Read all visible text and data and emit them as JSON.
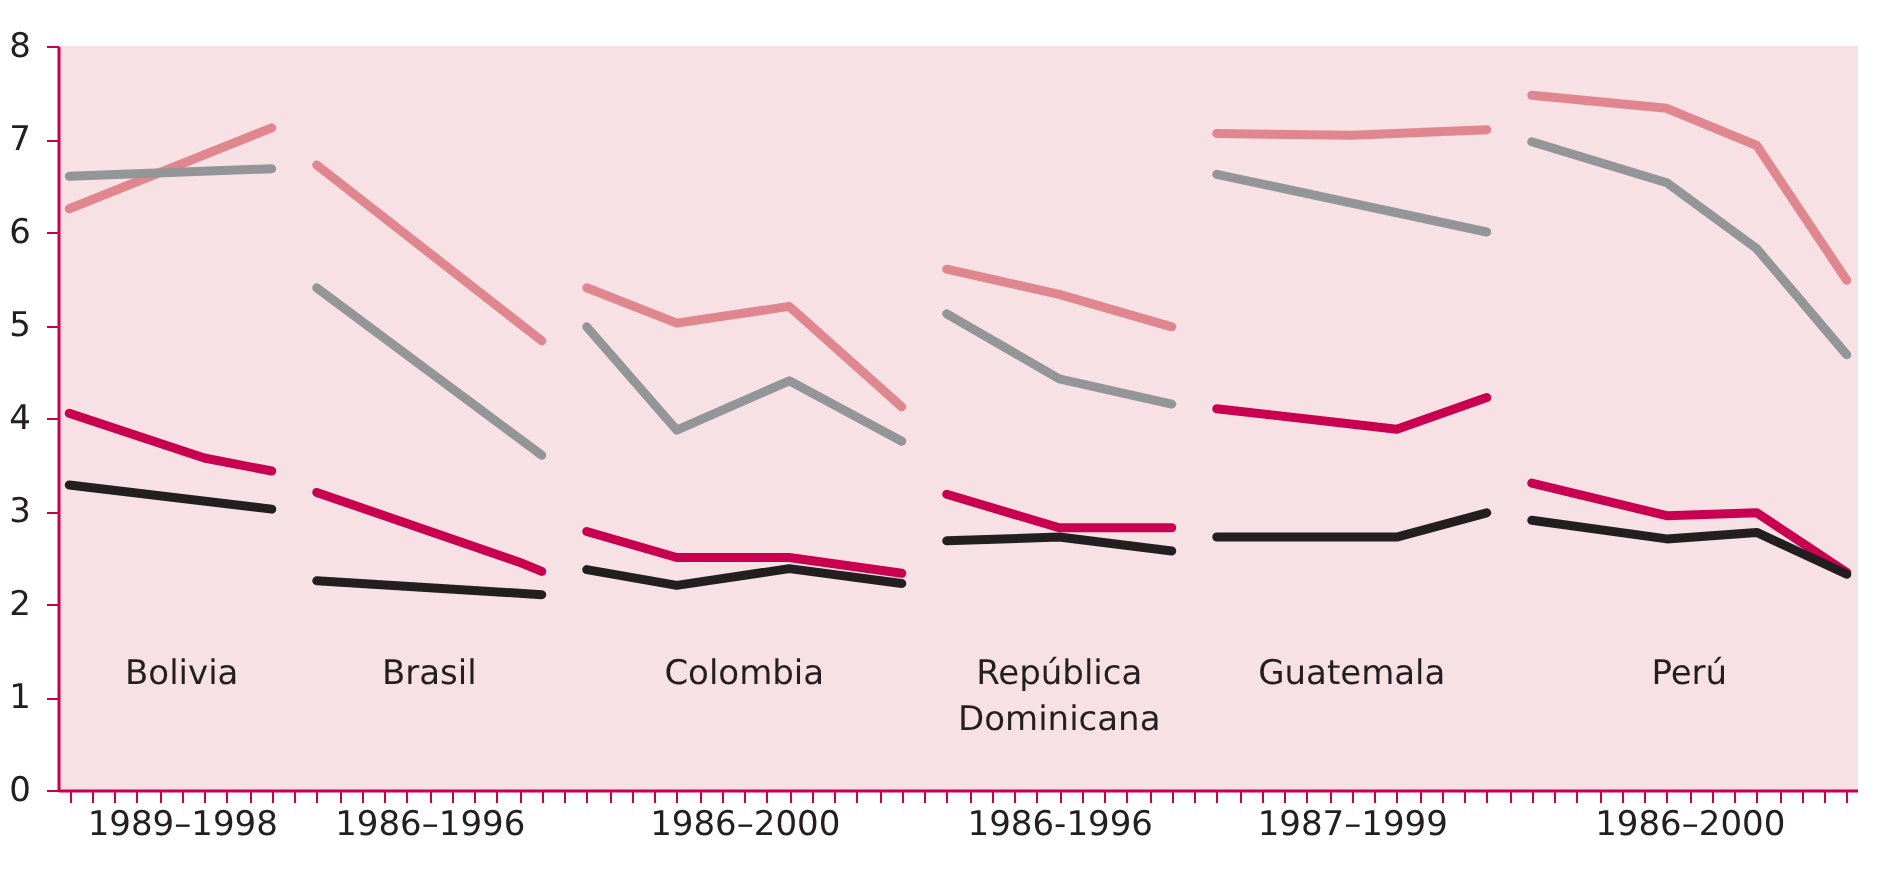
{
  "chart_data": {
    "type": "line",
    "categories": [
      null,
      null,
      null,
      null,
      null,
      "1989–1998",
      null,
      null,
      null,
      null,
      null,
      null,
      null,
      null,
      null,
      null,
      "1986–1996",
      null,
      null,
      null,
      null,
      null,
      null,
      null,
      null,
      null,
      null,
      null,
      null,
      null,
      "1986–2000",
      null,
      null,
      null,
      null,
      null,
      null,
      null,
      null,
      null,
      null,
      null,
      null,
      null,
      "1986-1996",
      null,
      null,
      null,
      null,
      null,
      null,
      null,
      null,
      null,
      null,
      null,
      null,
      "1987–1999",
      null,
      null,
      null,
      null,
      null,
      null,
      null,
      null,
      null,
      null,
      null,
      null,
      null,
      null,
      "1986–2000",
      null,
      null,
      null,
      null,
      null,
      null,
      null
    ],
    "annotations": [
      "Bolivia",
      "Brasil",
      "Colombia",
      "República Dominicana",
      "Guatemala",
      "Perú"
    ],
    "ylim": [
      0,
      8
    ],
    "yticks": [
      0,
      1,
      2,
      3,
      4,
      5,
      6,
      7,
      8
    ],
    "series": [
      {
        "color": "#e0868f",
        "values": [
          6.25,
          null,
          null,
          null,
          null,
          null,
          null,
          null,
          null,
          7.12,
          null,
          null,
          null,
          null,
          null,
          null,
          null,
          null,
          null,
          null,
          null,
          null,
          null,
          null,
          null,
          null,
          null,
          null,
          null,
          null,
          null,
          null,
          null,
          null,
          null,
          null,
          null,
          null,
          null,
          null,
          null,
          null,
          null,
          null,
          null,
          null,
          null,
          null,
          null,
          null,
          null,
          null,
          null,
          null,
          null,
          null,
          null,
          null,
          null,
          null,
          null,
          null,
          null,
          null,
          null,
          null,
          null,
          null,
          null,
          null,
          null,
          null,
          null,
          null,
          null,
          null,
          null,
          null,
          null,
          null
        ]
      },
      {
        "color": "#939598",
        "values": [
          6.6,
          null,
          null,
          null,
          null,
          null,
          null,
          null,
          null,
          6.68,
          null,
          null,
          null,
          null,
          null,
          null,
          null,
          null,
          null,
          null,
          null,
          null,
          null,
          null,
          null,
          null,
          null,
          null,
          null,
          null,
          null,
          null,
          null,
          null,
          null,
          null,
          null,
          null,
          null,
          null,
          null,
          null,
          null,
          null,
          null,
          null,
          null,
          null,
          null,
          null,
          null,
          null,
          null,
          null,
          null,
          null,
          null,
          null,
          null,
          null,
          null,
          null,
          null,
          null,
          null,
          null,
          null,
          null,
          null,
          null,
          null,
          null,
          null,
          null,
          null,
          null,
          null,
          null,
          null,
          null
        ]
      },
      {
        "color": "#c8004f",
        "values": [
          4.05,
          null,
          null,
          null,
          null,
          null,
          3.57,
          null,
          null,
          3.43,
          null,
          null,
          null,
          null,
          null,
          null,
          null,
          null,
          null,
          null,
          null,
          null,
          null,
          null,
          null,
          null,
          null,
          null,
          null,
          null,
          null,
          null,
          null,
          null,
          null,
          null,
          null,
          null,
          null,
          null,
          null,
          null,
          null,
          null,
          null,
          null,
          null,
          null,
          null,
          null,
          null,
          null,
          null,
          null,
          null,
          null,
          null,
          null,
          null,
          null,
          null,
          null,
          null,
          null,
          null,
          null,
          null,
          null,
          null,
          null,
          null,
          null,
          null,
          null,
          null,
          null,
          null,
          null,
          null,
          null
        ]
      },
      {
        "color": "#231f20",
        "values": [
          3.28,
          null,
          null,
          null,
          null,
          null,
          null,
          null,
          null,
          3.02,
          null,
          null,
          null,
          null,
          null,
          null,
          null,
          null,
          null,
          null,
          null,
          null,
          null,
          null,
          null,
          null,
          null,
          null,
          null,
          null,
          null,
          null,
          null,
          null,
          null,
          null,
          null,
          null,
          null,
          null,
          null,
          null,
          null,
          null,
          null,
          null,
          null,
          null,
          null,
          null,
          null,
          null,
          null,
          null,
          null,
          null,
          null,
          null,
          null,
          null,
          null,
          null,
          null,
          null,
          null,
          null,
          null,
          null,
          null,
          null,
          null,
          null,
          null,
          null,
          null,
          null,
          null,
          null,
          null,
          null
        ]
      },
      {
        "color": "#e0868f",
        "values": [
          null,
          null,
          null,
          null,
          null,
          null,
          null,
          null,
          null,
          null,
          null,
          6.72,
          null,
          null,
          null,
          null,
          null,
          null,
          null,
          null,
          null,
          4.83,
          null,
          null,
          null,
          null,
          null,
          null,
          null,
          null,
          null,
          null,
          null,
          null,
          null,
          null,
          null,
          null,
          null,
          null,
          null,
          null,
          null,
          null,
          null,
          null,
          null,
          null,
          null,
          null,
          null,
          null,
          null,
          null,
          null,
          null,
          null,
          null,
          null,
          null,
          null,
          null,
          null,
          null,
          null,
          null,
          null,
          null,
          null,
          null,
          null,
          null,
          null,
          null,
          null,
          null,
          null,
          null,
          null,
          null
        ]
      },
      {
        "color": "#939598",
        "values": [
          null,
          null,
          null,
          null,
          null,
          null,
          null,
          null,
          null,
          null,
          null,
          5.4,
          null,
          null,
          null,
          null,
          null,
          null,
          null,
          null,
          null,
          3.6,
          null,
          null,
          null,
          null,
          null,
          null,
          null,
          null,
          null,
          null,
          null,
          null,
          null,
          null,
          null,
          null,
          null,
          null,
          null,
          null,
          null,
          null,
          null,
          null,
          null,
          null,
          null,
          null,
          null,
          null,
          null,
          null,
          null,
          null,
          null,
          null,
          null,
          null,
          null,
          null,
          null,
          null,
          null,
          null,
          null,
          null,
          null,
          null,
          null,
          null,
          null,
          null,
          null,
          null,
          null,
          null,
          null,
          null
        ]
      },
      {
        "color": "#c8004f",
        "values": [
          null,
          null,
          null,
          null,
          null,
          null,
          null,
          null,
          null,
          null,
          null,
          3.2,
          null,
          null,
          null,
          null,
          null,
          null,
          null,
          null,
          2.45,
          2.35,
          null,
          null,
          null,
          null,
          null,
          null,
          null,
          null,
          null,
          null,
          null,
          null,
          null,
          null,
          null,
          null,
          null,
          null,
          null,
          null,
          null,
          null,
          null,
          null,
          null,
          null,
          null,
          null,
          null,
          null,
          null,
          null,
          null,
          null,
          null,
          null,
          null,
          null,
          null,
          null,
          null,
          null,
          null,
          null,
          null,
          null,
          null,
          null,
          null,
          null,
          null,
          null,
          null,
          null,
          null,
          null,
          null,
          null
        ]
      },
      {
        "color": "#231f20",
        "values": [
          null,
          null,
          null,
          null,
          null,
          null,
          null,
          null,
          null,
          null,
          null,
          2.25,
          null,
          null,
          null,
          null,
          null,
          null,
          null,
          null,
          null,
          2.1,
          null,
          null,
          null,
          null,
          null,
          null,
          null,
          null,
          null,
          null,
          null,
          null,
          null,
          null,
          null,
          null,
          null,
          null,
          null,
          null,
          null,
          null,
          null,
          null,
          null,
          null,
          null,
          null,
          null,
          null,
          null,
          null,
          null,
          null,
          null,
          null,
          null,
          null,
          null,
          null,
          null,
          null,
          null,
          null,
          null,
          null,
          null,
          null,
          null,
          null,
          null,
          null,
          null,
          null,
          null,
          null,
          null,
          null
        ]
      },
      {
        "color": "#e0868f",
        "values": [
          null,
          null,
          null,
          null,
          null,
          null,
          null,
          null,
          null,
          null,
          null,
          null,
          null,
          null,
          null,
          null,
          null,
          null,
          null,
          null,
          null,
          null,
          null,
          5.4,
          null,
          null,
          null,
          5.02,
          null,
          null,
          null,
          null,
          5.2,
          null,
          null,
          null,
          null,
          4.12,
          null,
          null,
          null,
          null,
          null,
          null,
          null,
          null,
          null,
          null,
          null,
          null,
          null,
          null,
          null,
          null,
          null,
          null,
          null,
          null,
          null,
          null,
          null,
          null,
          null,
          null,
          null,
          null,
          null,
          null,
          null,
          null,
          null,
          null,
          null,
          null,
          null,
          null,
          null,
          null,
          null,
          null
        ]
      },
      {
        "color": "#939598",
        "values": [
          null,
          null,
          null,
          null,
          null,
          null,
          null,
          null,
          null,
          null,
          null,
          null,
          null,
          null,
          null,
          null,
          null,
          null,
          null,
          null,
          null,
          null,
          null,
          4.98,
          null,
          null,
          null,
          3.87,
          null,
          null,
          null,
          null,
          4.4,
          null,
          null,
          null,
          null,
          3.75,
          null,
          null,
          null,
          null,
          null,
          null,
          null,
          null,
          null,
          null,
          null,
          null,
          null,
          null,
          null,
          null,
          null,
          null,
          null,
          null,
          null,
          null,
          null,
          null,
          null,
          null,
          null,
          null,
          null,
          null,
          null,
          null,
          null,
          null,
          null,
          null,
          null,
          null,
          null,
          null,
          null,
          null
        ]
      },
      {
        "color": "#c8004f",
        "values": [
          null,
          null,
          null,
          null,
          null,
          null,
          null,
          null,
          null,
          null,
          null,
          null,
          null,
          null,
          null,
          null,
          null,
          null,
          null,
          null,
          null,
          null,
          null,
          2.78,
          null,
          null,
          null,
          2.5,
          null,
          null,
          null,
          null,
          2.5,
          null,
          null,
          null,
          null,
          2.33,
          null,
          null,
          null,
          null,
          null,
          null,
          null,
          null,
          null,
          null,
          null,
          null,
          null,
          null,
          null,
          null,
          null,
          null,
          null,
          null,
          null,
          null,
          null,
          null,
          null,
          null,
          null,
          null,
          null,
          null,
          null,
          null,
          null,
          null,
          null,
          null,
          null,
          null,
          null,
          null,
          null,
          null
        ]
      },
      {
        "color": "#231f20",
        "values": [
          null,
          null,
          null,
          null,
          null,
          null,
          null,
          null,
          null,
          null,
          null,
          null,
          null,
          null,
          null,
          null,
          null,
          null,
          null,
          null,
          null,
          null,
          null,
          2.37,
          null,
          null,
          null,
          2.2,
          null,
          null,
          null,
          null,
          2.38,
          null,
          null,
          null,
          null,
          2.22,
          null,
          null,
          null,
          null,
          null,
          null,
          null,
          null,
          null,
          null,
          null,
          null,
          null,
          null,
          null,
          null,
          null,
          null,
          null,
          null,
          null,
          null,
          null,
          null,
          null,
          null,
          null,
          null,
          null,
          null,
          null,
          null,
          null,
          null,
          null,
          null,
          null,
          null,
          null,
          null,
          null,
          null
        ]
      },
      {
        "color": "#e0868f",
        "values": [
          null,
          null,
          null,
          null,
          null,
          null,
          null,
          null,
          null,
          null,
          null,
          null,
          null,
          null,
          null,
          null,
          null,
          null,
          null,
          null,
          null,
          null,
          null,
          null,
          null,
          null,
          null,
          null,
          null,
          null,
          null,
          null,
          null,
          null,
          null,
          null,
          null,
          null,
          null,
          5.6,
          null,
          null,
          null,
          null,
          5.33,
          null,
          null,
          null,
          null,
          4.98,
          null,
          null,
          null,
          null,
          null,
          null,
          null,
          null,
          null,
          null,
          null,
          null,
          null,
          null,
          null,
          null,
          null,
          null,
          null,
          null,
          null,
          null,
          null,
          null,
          null,
          null,
          null,
          null,
          null,
          null
        ]
      },
      {
        "color": "#939598",
        "values": [
          null,
          null,
          null,
          null,
          null,
          null,
          null,
          null,
          null,
          null,
          null,
          null,
          null,
          null,
          null,
          null,
          null,
          null,
          null,
          null,
          null,
          null,
          null,
          null,
          null,
          null,
          null,
          null,
          null,
          null,
          null,
          null,
          null,
          null,
          null,
          null,
          null,
          null,
          null,
          5.12,
          null,
          null,
          null,
          null,
          4.42,
          null,
          null,
          null,
          null,
          4.15,
          null,
          null,
          null,
          null,
          null,
          null,
          null,
          null,
          null,
          null,
          null,
          null,
          null,
          null,
          null,
          null,
          null,
          null,
          null,
          null,
          null,
          null,
          null,
          null,
          null,
          null,
          null,
          null,
          null,
          null
        ]
      },
      {
        "color": "#c8004f",
        "values": [
          null,
          null,
          null,
          null,
          null,
          null,
          null,
          null,
          null,
          null,
          null,
          null,
          null,
          null,
          null,
          null,
          null,
          null,
          null,
          null,
          null,
          null,
          null,
          null,
          null,
          null,
          null,
          null,
          null,
          null,
          null,
          null,
          null,
          null,
          null,
          null,
          null,
          null,
          null,
          3.18,
          null,
          null,
          null,
          null,
          2.82,
          null,
          null,
          null,
          null,
          2.82,
          null,
          null,
          null,
          null,
          null,
          null,
          null,
          null,
          null,
          null,
          null,
          null,
          null,
          null,
          null,
          null,
          null,
          null,
          null,
          null,
          null,
          null,
          null,
          null,
          null,
          null,
          null,
          null,
          null,
          null
        ]
      },
      {
        "color": "#231f20",
        "values": [
          null,
          null,
          null,
          null,
          null,
          null,
          null,
          null,
          null,
          null,
          null,
          null,
          null,
          null,
          null,
          null,
          null,
          null,
          null,
          null,
          null,
          null,
          null,
          null,
          null,
          null,
          null,
          null,
          null,
          null,
          null,
          null,
          null,
          null,
          null,
          null,
          null,
          null,
          null,
          2.68,
          null,
          null,
          null,
          null,
          2.72,
          null,
          null,
          null,
          null,
          2.57,
          null,
          null,
          null,
          null,
          null,
          null,
          null,
          null,
          null,
          null,
          null,
          null,
          null,
          null,
          null,
          null,
          null,
          null,
          null,
          null,
          null,
          null,
          null,
          null,
          null,
          null,
          null,
          null,
          null,
          null
        ]
      },
      {
        "color": "#e0868f",
        "values": [
          null,
          null,
          null,
          null,
          null,
          null,
          null,
          null,
          null,
          null,
          null,
          null,
          null,
          null,
          null,
          null,
          null,
          null,
          null,
          null,
          null,
          null,
          null,
          null,
          null,
          null,
          null,
          null,
          null,
          null,
          null,
          null,
          null,
          null,
          null,
          null,
          null,
          null,
          null,
          null,
          null,
          null,
          null,
          null,
          null,
          null,
          null,
          null,
          null,
          null,
          null,
          7.06,
          null,
          null,
          null,
          null,
          null,
          7.04,
          null,
          null,
          null,
          null,
          null,
          7.1,
          null,
          null,
          null,
          null,
          null,
          null,
          null,
          null,
          null,
          null,
          null,
          null,
          null,
          null,
          null,
          null
        ]
      },
      {
        "color": "#939598",
        "values": [
          null,
          null,
          null,
          null,
          null,
          null,
          null,
          null,
          null,
          null,
          null,
          null,
          null,
          null,
          null,
          null,
          null,
          null,
          null,
          null,
          null,
          null,
          null,
          null,
          null,
          null,
          null,
          null,
          null,
          null,
          null,
          null,
          null,
          null,
          null,
          null,
          null,
          null,
          null,
          null,
          null,
          null,
          null,
          null,
          null,
          null,
          null,
          null,
          null,
          null,
          null,
          6.62,
          null,
          null,
          null,
          null,
          null,
          null,
          null,
          null,
          null,
          null,
          null,
          6.0,
          null,
          null,
          null,
          null,
          null,
          null,
          null,
          null,
          null,
          null,
          null,
          null,
          null,
          null,
          null,
          null
        ]
      },
      {
        "color": "#c8004f",
        "values": [
          null,
          null,
          null,
          null,
          null,
          null,
          null,
          null,
          null,
          null,
          null,
          null,
          null,
          null,
          null,
          null,
          null,
          null,
          null,
          null,
          null,
          null,
          null,
          null,
          null,
          null,
          null,
          null,
          null,
          null,
          null,
          null,
          null,
          null,
          null,
          null,
          null,
          null,
          null,
          null,
          null,
          null,
          null,
          null,
          null,
          null,
          null,
          null,
          null,
          null,
          null,
          4.1,
          null,
          null,
          null,
          null,
          null,
          null,
          null,
          3.88,
          null,
          null,
          null,
          4.22,
          null,
          null,
          null,
          null,
          null,
          null,
          null,
          null,
          null,
          null,
          null,
          null,
          null,
          null,
          null,
          null
        ]
      },
      {
        "color": "#231f20",
        "values": [
          null,
          null,
          null,
          null,
          null,
          null,
          null,
          null,
          null,
          null,
          null,
          null,
          null,
          null,
          null,
          null,
          null,
          null,
          null,
          null,
          null,
          null,
          null,
          null,
          null,
          null,
          null,
          null,
          null,
          null,
          null,
          null,
          null,
          null,
          null,
          null,
          null,
          null,
          null,
          null,
          null,
          null,
          null,
          null,
          null,
          null,
          null,
          null,
          null,
          null,
          null,
          2.72,
          null,
          null,
          null,
          null,
          null,
          null,
          null,
          2.72,
          null,
          null,
          null,
          2.98,
          null,
          null,
          null,
          null,
          null,
          null,
          null,
          null,
          null,
          null,
          null,
          null,
          null,
          null,
          null,
          null
        ]
      },
      {
        "color": "#e0868f",
        "values": [
          null,
          null,
          null,
          null,
          null,
          null,
          null,
          null,
          null,
          null,
          null,
          null,
          null,
          null,
          null,
          null,
          null,
          null,
          null,
          null,
          null,
          null,
          null,
          null,
          null,
          null,
          null,
          null,
          null,
          null,
          null,
          null,
          null,
          null,
          null,
          null,
          null,
          null,
          null,
          null,
          null,
          null,
          null,
          null,
          null,
          null,
          null,
          null,
          null,
          null,
          null,
          null,
          null,
          null,
          null,
          null,
          null,
          null,
          null,
          null,
          null,
          null,
          null,
          null,
          null,
          7.47,
          null,
          null,
          null,
          null,
          null,
          7.33,
          null,
          null,
          null,
          6.93,
          null,
          null,
          null,
          5.48
        ]
      },
      {
        "color": "#939598",
        "values": [
          null,
          null,
          null,
          null,
          null,
          null,
          null,
          null,
          null,
          null,
          null,
          null,
          null,
          null,
          null,
          null,
          null,
          null,
          null,
          null,
          null,
          null,
          null,
          null,
          null,
          null,
          null,
          null,
          null,
          null,
          null,
          null,
          null,
          null,
          null,
          null,
          null,
          null,
          null,
          null,
          null,
          null,
          null,
          null,
          null,
          null,
          null,
          null,
          null,
          null,
          null,
          null,
          null,
          null,
          null,
          null,
          null,
          null,
          null,
          null,
          null,
          null,
          null,
          null,
          null,
          6.97,
          null,
          null,
          null,
          null,
          null,
          6.53,
          null,
          null,
          null,
          5.82,
          null,
          null,
          null,
          4.68
        ]
      },
      {
        "color": "#c8004f",
        "values": [
          null,
          null,
          null,
          null,
          null,
          null,
          null,
          null,
          null,
          null,
          null,
          null,
          null,
          null,
          null,
          null,
          null,
          null,
          null,
          null,
          null,
          null,
          null,
          null,
          null,
          null,
          null,
          null,
          null,
          null,
          null,
          null,
          null,
          null,
          null,
          null,
          null,
          null,
          null,
          null,
          null,
          null,
          null,
          null,
          null,
          null,
          null,
          null,
          null,
          null,
          null,
          null,
          null,
          null,
          null,
          null,
          null,
          null,
          null,
          null,
          null,
          null,
          null,
          null,
          null,
          3.3,
          null,
          null,
          null,
          null,
          null,
          2.95,
          null,
          null,
          null,
          2.98,
          null,
          null,
          null,
          2.34
        ]
      },
      {
        "color": "#231f20",
        "values": [
          null,
          null,
          null,
          null,
          null,
          null,
          null,
          null,
          null,
          null,
          null,
          null,
          null,
          null,
          null,
          null,
          null,
          null,
          null,
          null,
          null,
          null,
          null,
          null,
          null,
          null,
          null,
          null,
          null,
          null,
          null,
          null,
          null,
          null,
          null,
          null,
          null,
          null,
          null,
          null,
          null,
          null,
          null,
          null,
          null,
          null,
          null,
          null,
          null,
          null,
          null,
          null,
          null,
          null,
          null,
          null,
          null,
          null,
          null,
          null,
          null,
          null,
          null,
          null,
          null,
          2.9,
          null,
          null,
          null,
          null,
          null,
          2.7,
          null,
          null,
          null,
          2.77,
          null,
          null,
          null,
          2.32
        ]
      }
    ]
  }
}
